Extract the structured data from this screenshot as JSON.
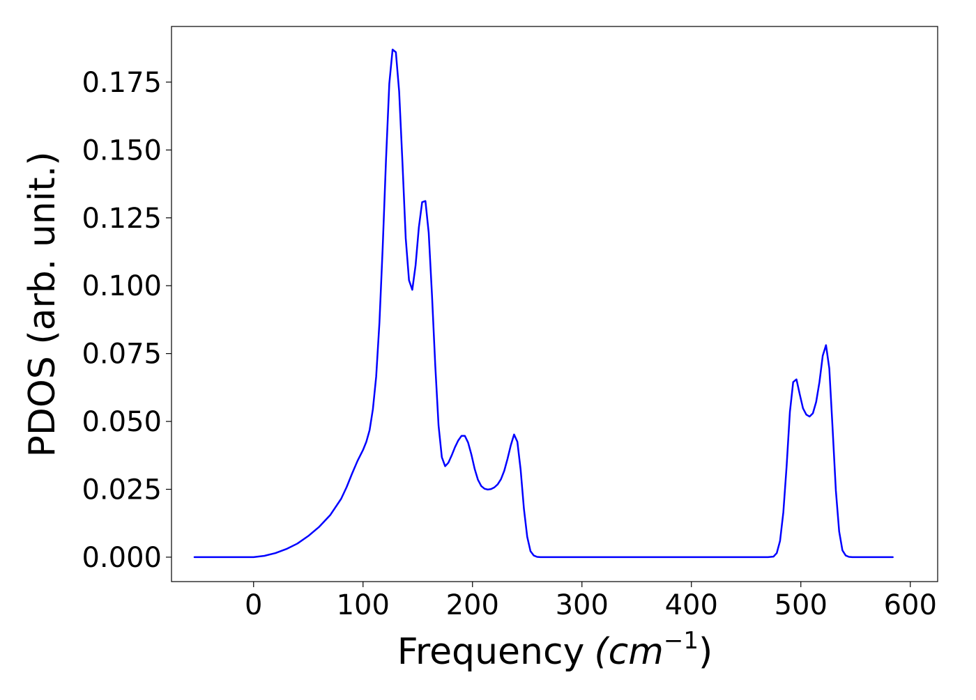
{
  "chart_data": {
    "type": "line",
    "xlabel": "Frequency",
    "xlabel_unit": "(cm",
    "xlabel_unit_exponent": "−1",
    "xlabel_close": ")",
    "ylabel": "PDOS (arb. unit.)",
    "xlim": [
      -75,
      625
    ],
    "ylim": [
      -0.009,
      0.1955
    ],
    "xticks": [
      0,
      100,
      200,
      300,
      400,
      500,
      600
    ],
    "xtick_labels": [
      "0",
      "100",
      "200",
      "300",
      "400",
      "500",
      "600"
    ],
    "yticks": [
      0.0,
      0.025,
      0.05,
      0.075,
      0.1,
      0.125,
      0.15,
      0.175
    ],
    "ytick_labels": [
      "0.000",
      "0.025",
      "0.050",
      "0.075",
      "0.100",
      "0.125",
      "0.150",
      "0.175"
    ],
    "grid": false,
    "series": [
      {
        "color": "#0000ff",
        "x": [
          -54,
          -40,
          -20,
          0,
          10,
          20,
          30,
          40,
          50,
          60,
          70,
          80,
          85,
          90,
          95,
          100,
          103,
          106,
          109,
          112,
          115,
          118,
          121,
          124,
          127,
          130,
          133,
          136,
          139,
          142,
          145,
          148,
          151,
          154,
          157,
          160,
          163,
          166,
          169,
          172,
          175,
          178,
          181,
          184,
          187,
          190,
          193,
          196,
          199,
          202,
          205,
          208,
          211,
          214,
          217,
          220,
          223,
          226,
          229,
          232,
          235,
          238,
          241,
          244,
          247,
          250,
          253,
          256,
          259,
          262,
          265,
          270,
          300,
          400,
          470,
          475,
          478,
          481,
          484,
          487,
          490,
          493,
          496,
          499,
          502,
          505,
          508,
          511,
          514,
          517,
          520,
          523,
          526,
          529,
          532,
          535,
          538,
          541,
          544,
          547,
          550,
          560,
          584
        ],
        "y": [
          0.0,
          0.0,
          0.0,
          0.0,
          0.0005,
          0.0015,
          0.003,
          0.005,
          0.0078,
          0.0112,
          0.0155,
          0.0215,
          0.0258,
          0.0308,
          0.0355,
          0.0395,
          0.0425,
          0.0468,
          0.0545,
          0.0665,
          0.0865,
          0.1145,
          0.1465,
          0.1745,
          0.187,
          0.186,
          0.1715,
          0.1455,
          0.1175,
          0.102,
          0.0985,
          0.1075,
          0.1215,
          0.1308,
          0.1312,
          0.1195,
          0.0965,
          0.0705,
          0.0485,
          0.0368,
          0.0335,
          0.0348,
          0.0375,
          0.0405,
          0.043,
          0.0447,
          0.0447,
          0.0422,
          0.0378,
          0.0325,
          0.0285,
          0.0262,
          0.0252,
          0.0249,
          0.0251,
          0.0257,
          0.0268,
          0.0287,
          0.0318,
          0.0362,
          0.0412,
          0.0452,
          0.0425,
          0.0322,
          0.0178,
          0.0075,
          0.0022,
          0.0006,
          0.0001,
          0.0,
          0.0,
          0.0,
          0.0,
          0.0,
          0.0,
          0.0002,
          0.0015,
          0.006,
          0.0165,
          0.0335,
          0.0535,
          0.0645,
          0.0655,
          0.06,
          0.0548,
          0.0525,
          0.0518,
          0.053,
          0.0572,
          0.0645,
          0.0742,
          0.0781,
          0.0695,
          0.0475,
          0.0245,
          0.0095,
          0.0025,
          0.0006,
          0.0001,
          0.0,
          0.0,
          0.0,
          0.0
        ]
      }
    ]
  }
}
